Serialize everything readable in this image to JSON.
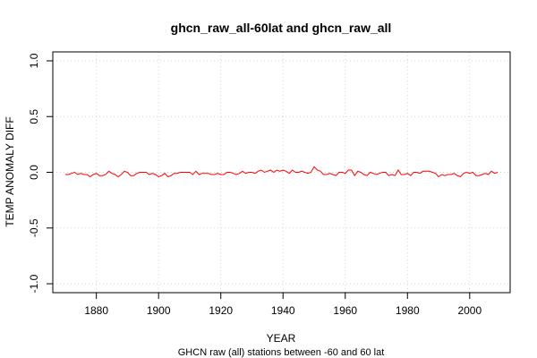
{
  "chart_data": {
    "type": "line",
    "title": "ghcn_raw_all-60lat  and  ghcn_raw_all",
    "xlabel": "YEAR",
    "subtitle": "GHCN raw (all) stations between -60 and 60 lat",
    "ylabel": "TEMP ANOMALY DIFF",
    "xlim": [
      1866,
      2013
    ],
    "ylim": [
      -1.08,
      1.08
    ],
    "x_ticks": [
      1880,
      1900,
      1920,
      1940,
      1960,
      1980,
      2000
    ],
    "y_ticks": [
      -1.0,
      -0.5,
      0.0,
      0.5,
      1.0
    ],
    "grid": true,
    "series": [
      {
        "color": "#ff0000",
        "x": [
          1870,
          1871,
          1872,
          1873,
          1874,
          1875,
          1876,
          1877,
          1878,
          1879,
          1880,
          1881,
          1882,
          1883,
          1884,
          1885,
          1886,
          1887,
          1888,
          1889,
          1890,
          1891,
          1892,
          1893,
          1894,
          1895,
          1896,
          1897,
          1898,
          1899,
          1900,
          1901,
          1902,
          1903,
          1904,
          1905,
          1906,
          1907,
          1908,
          1909,
          1910,
          1911,
          1912,
          1913,
          1914,
          1915,
          1916,
          1917,
          1918,
          1919,
          1920,
          1921,
          1922,
          1923,
          1924,
          1925,
          1926,
          1927,
          1928,
          1929,
          1930,
          1931,
          1932,
          1933,
          1934,
          1935,
          1936,
          1937,
          1938,
          1939,
          1940,
          1941,
          1942,
          1943,
          1944,
          1945,
          1946,
          1947,
          1948,
          1949,
          1950,
          1951,
          1952,
          1953,
          1954,
          1955,
          1956,
          1957,
          1958,
          1959,
          1960,
          1961,
          1962,
          1963,
          1964,
          1965,
          1966,
          1967,
          1968,
          1969,
          1970,
          1971,
          1972,
          1973,
          1974,
          1975,
          1976,
          1977,
          1978,
          1979,
          1980,
          1981,
          1982,
          1983,
          1984,
          1985,
          1986,
          1987,
          1988,
          1989,
          1990,
          1991,
          1992,
          1993,
          1994,
          1995,
          1996,
          1997,
          1998,
          1999,
          2000,
          2001,
          2002,
          2003,
          2004,
          2005,
          2006,
          2007,
          2008,
          2009
        ],
        "values": [
          -0.02,
          -0.02,
          -0.01,
          0.0,
          -0.02,
          -0.01,
          -0.02,
          -0.02,
          -0.04,
          -0.02,
          -0.01,
          -0.03,
          -0.03,
          -0.02,
          0.01,
          -0.01,
          -0.02,
          -0.04,
          -0.02,
          0.01,
          0.0,
          -0.03,
          -0.03,
          -0.01,
          0.0,
          0.0,
          0.0,
          -0.02,
          -0.01,
          -0.02,
          -0.04,
          -0.03,
          -0.01,
          -0.04,
          -0.03,
          -0.01,
          -0.01,
          0.0,
          0.0,
          0.0,
          0.0,
          -0.02,
          0.01,
          -0.02,
          -0.01,
          -0.01,
          -0.01,
          -0.02,
          -0.02,
          -0.01,
          -0.02,
          -0.02,
          0.0,
          0.0,
          -0.01,
          -0.02,
          -0.01,
          0.01,
          -0.01,
          0.0,
          0.0,
          -0.01,
          0.01,
          0.02,
          0.0,
          0.01,
          0.02,
          0.0,
          0.02,
          0.01,
          0.02,
          0.01,
          -0.01,
          0.02,
          0.0,
          0.0,
          0.01,
          0.0,
          -0.01,
          0.0,
          0.05,
          0.02,
          0.01,
          -0.02,
          -0.02,
          -0.01,
          -0.02,
          -0.03,
          0.0,
          0.0,
          -0.01,
          0.02,
          0.02,
          -0.03,
          0.01,
          0.0,
          -0.02,
          -0.03,
          0.0,
          -0.01,
          -0.02,
          -0.01,
          0.0,
          0.0,
          -0.03,
          -0.02,
          -0.03,
          0.02,
          -0.02,
          -0.02,
          -0.01,
          -0.03,
          0.0,
          0.0,
          -0.01,
          0.01,
          0.01,
          0.01,
          0.0,
          -0.01,
          -0.04,
          -0.02,
          -0.03,
          -0.02,
          -0.02,
          -0.01,
          -0.03,
          -0.04,
          -0.01,
          0.0,
          -0.01,
          0.0,
          -0.03,
          -0.03,
          -0.02,
          -0.01,
          -0.02,
          0.01,
          -0.01,
          0.0
        ]
      }
    ]
  }
}
